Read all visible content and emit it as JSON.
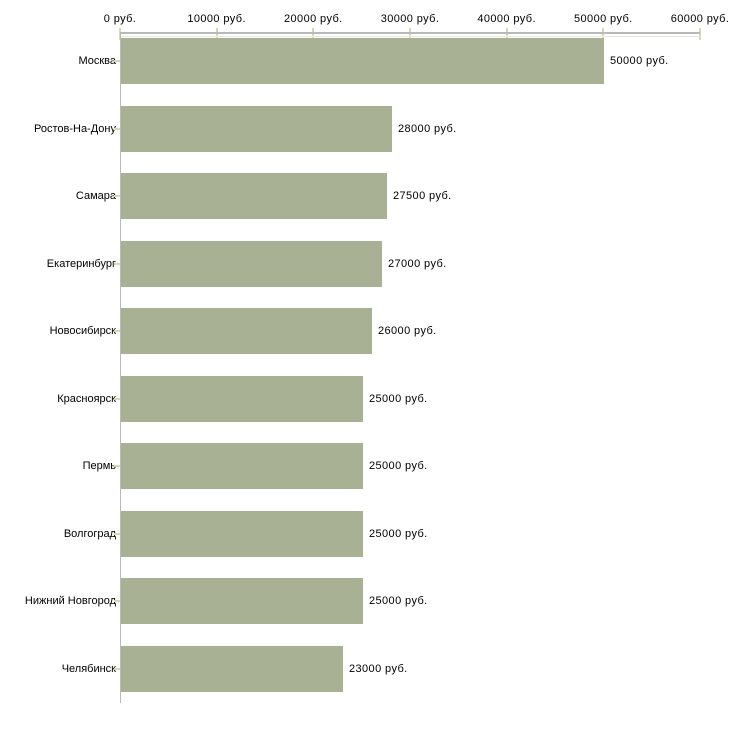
{
  "chart_data": {
    "type": "bar",
    "orientation": "horizontal",
    "title": "",
    "xlabel": "",
    "ylabel": "",
    "grid": false,
    "legend": false,
    "categories": [
      "Москва",
      "Ростов-На-Дону",
      "Самара",
      "Екатеринбург",
      "Новосибирск",
      "Красноярск",
      "Пермь",
      "Волгоград",
      "Нижний Новгород",
      "Челябинск"
    ],
    "values": [
      50000,
      28000,
      27500,
      27000,
      26000,
      25000,
      25000,
      25000,
      25000,
      23000
    ],
    "value_labels": [
      "50000 руб.",
      "28000 руб.",
      "27500 руб.",
      "27000 руб.",
      "26000 руб.",
      "25000 руб.",
      "25000 руб.",
      "25000 руб.",
      "25000 руб.",
      "23000 руб."
    ],
    "axis": {
      "position": "top",
      "range": [
        0,
        60000
      ],
      "ticks": [
        0,
        10000,
        20000,
        30000,
        40000,
        50000,
        60000
      ],
      "tick_labels": [
        "0 руб.",
        "10000 руб.",
        "20000 руб.",
        "30000 руб.",
        "40000 руб.",
        "50000 руб.",
        "60000 руб."
      ]
    },
    "colors": {
      "bar": "#a8b194",
      "axis_line": "#b9b9b9",
      "axis_highlight": "#e9e9dd",
      "tick": "#d8d8b2",
      "text": "#000000",
      "background": "#ffffff"
    }
  }
}
